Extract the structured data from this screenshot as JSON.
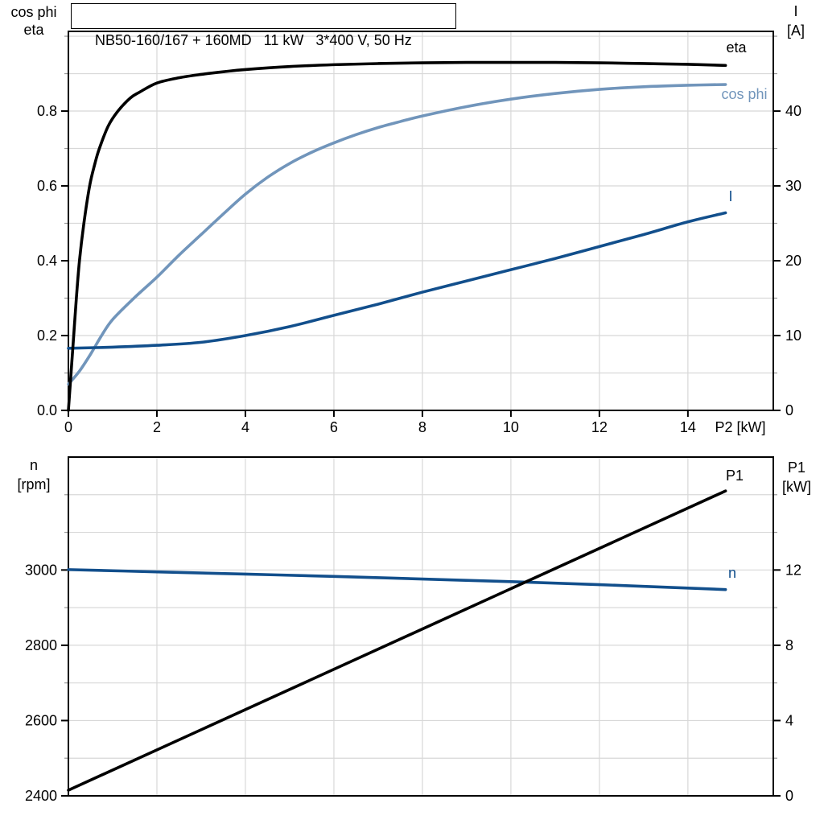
{
  "title": "NB50-160/167 + 160MD   11 kW   3*400 V, 50 Hz",
  "colors": {
    "black": "#000000",
    "dark_blue": "#124F8C",
    "light_blue": "#7195BB",
    "grid": "#D8D8D8",
    "minor_tick": "#999999",
    "background": "#FFFFFF"
  },
  "chart_data": [
    {
      "type": "line",
      "title": "NB50-160/167 + 160MD   11 kW   3*400 V, 50 Hz",
      "x_axis": {
        "label": "P2 [kW]",
        "min": 0,
        "max": 15.93,
        "major_ticks": [
          0,
          2,
          4,
          6,
          8,
          10,
          12,
          14
        ],
        "tick_labels": [
          "0",
          "2",
          "4",
          "6",
          "8",
          "10",
          "12",
          "14"
        ],
        "grid_ticks": [
          2,
          4,
          6,
          8,
          10,
          12,
          14
        ]
      },
      "left_axis": {
        "title_lines": [
          "cos phi",
          "eta"
        ],
        "min": 0,
        "max": 1.013,
        "minor_step": 0.1,
        "major_ticks": [
          0,
          0.2,
          0.4,
          0.6,
          0.8
        ],
        "tick_labels": [
          "0.0",
          "0.2",
          "0.4",
          "0.6",
          "0.8"
        ]
      },
      "right_axis": {
        "title_lines": [
          "I",
          "[A]"
        ],
        "min": 0,
        "max": 50.65,
        "minor_step": 5,
        "major_ticks": [
          0,
          10,
          20,
          30,
          40
        ],
        "tick_labels": [
          "0",
          "10",
          "20",
          "30",
          "40"
        ]
      },
      "series": [
        {
          "name": "cos phi",
          "axis": "left",
          "color_key": "light_blue",
          "points": [
            [
              0,
              0.07
            ],
            [
              0.25,
              0.105
            ],
            [
              0.5,
              0.15
            ],
            [
              0.75,
              0.2
            ],
            [
              1,
              0.243
            ],
            [
              1.5,
              0.302
            ],
            [
              2,
              0.356
            ],
            [
              2.5,
              0.415
            ],
            [
              3,
              0.47
            ],
            [
              3.5,
              0.525
            ],
            [
              4,
              0.578
            ],
            [
              4.5,
              0.623
            ],
            [
              5,
              0.66
            ],
            [
              5.5,
              0.69
            ],
            [
              6,
              0.715
            ],
            [
              6.5,
              0.737
            ],
            [
              7,
              0.756
            ],
            [
              7.5,
              0.772
            ],
            [
              8,
              0.787
            ],
            [
              9,
              0.812
            ],
            [
              10,
              0.832
            ],
            [
              11,
              0.847
            ],
            [
              12,
              0.858
            ],
            [
              13,
              0.865
            ],
            [
              14,
              0.869
            ],
            [
              14.85,
              0.871
            ]
          ]
        },
        {
          "name": "I",
          "axis": "right",
          "color_key": "dark_blue",
          "points": [
            [
              0,
              8.3
            ],
            [
              1,
              8.45
            ],
            [
              2,
              8.7
            ],
            [
              3,
              9.1
            ],
            [
              4,
              10.0
            ],
            [
              5,
              11.2
            ],
            [
              6,
              12.7
            ],
            [
              7,
              14.2
            ],
            [
              8,
              15.8
            ],
            [
              9,
              17.3
            ],
            [
              10,
              18.8
            ],
            [
              11,
              20.3
            ],
            [
              12,
              21.9
            ],
            [
              13,
              23.5
            ],
            [
              14,
              25.2
            ],
            [
              14.85,
              26.4
            ]
          ]
        },
        {
          "name": "eta",
          "axis": "left",
          "color_key": "black",
          "points": [
            [
              0,
              0
            ],
            [
              0.06,
              0.1
            ],
            [
              0.12,
              0.2
            ],
            [
              0.18,
              0.3
            ],
            [
              0.25,
              0.4
            ],
            [
              0.35,
              0.5
            ],
            [
              0.48,
              0.6
            ],
            [
              0.6,
              0.66
            ],
            [
              0.7,
              0.7
            ],
            [
              0.9,
              0.76
            ],
            [
              1.12,
              0.8
            ],
            [
              1.4,
              0.835
            ],
            [
              1.6,
              0.85
            ],
            [
              2,
              0.875
            ],
            [
              2.5,
              0.889
            ],
            [
              3,
              0.898
            ],
            [
              3.5,
              0.905
            ],
            [
              4,
              0.911
            ],
            [
              5,
              0.919
            ],
            [
              6,
              0.924
            ],
            [
              7,
              0.927
            ],
            [
              8,
              0.929
            ],
            [
              9,
              0.93
            ],
            [
              10,
              0.93
            ],
            [
              11,
              0.93
            ],
            [
              12,
              0.929
            ],
            [
              13,
              0.927
            ],
            [
              14,
              0.925
            ],
            [
              14.85,
              0.922
            ]
          ]
        }
      ]
    },
    {
      "type": "line",
      "title": "",
      "x_axis": {
        "label": "",
        "min": 0,
        "max": 15.93,
        "major_ticks": [],
        "tick_labels": [],
        "grid_ticks": [
          2,
          4,
          6,
          8,
          10,
          12,
          14
        ]
      },
      "left_axis": {
        "title_lines": [
          "n",
          "[rpm]"
        ],
        "min": 2400,
        "max": 3300,
        "minor_step": 100,
        "major_ticks": [
          2400,
          2600,
          2800,
          3000
        ],
        "tick_labels": [
          "2400",
          "2600",
          "2800",
          "3000"
        ]
      },
      "right_axis": {
        "title_lines": [
          "P1",
          "[kW]"
        ],
        "min": 0,
        "max": 18,
        "minor_step": 2,
        "major_ticks": [
          0,
          4,
          8,
          12
        ],
        "tick_labels": [
          "0",
          "4",
          "8",
          "12"
        ]
      },
      "series": [
        {
          "name": "n",
          "axis": "left",
          "color_key": "dark_blue",
          "points": [
            [
              0,
              3001
            ],
            [
              2,
              2995
            ],
            [
              4,
              2989
            ],
            [
              6,
              2983
            ],
            [
              8,
              2976
            ],
            [
              10,
              2969
            ],
            [
              12,
              2961
            ],
            [
              14,
              2952
            ],
            [
              14.85,
              2948
            ]
          ]
        },
        {
          "name": "P1",
          "axis": "right",
          "color_key": "black",
          "points": [
            [
              0,
              0.3
            ],
            [
              14.85,
              16.2
            ]
          ]
        }
      ]
    }
  ]
}
